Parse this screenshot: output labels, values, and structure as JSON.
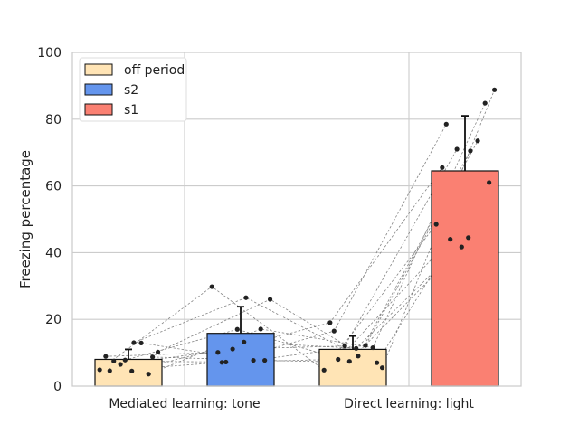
{
  "chart_data": {
    "type": "bar",
    "ylabel": "Freezing percentage",
    "xlabel": "",
    "title": "",
    "ylim": [
      0,
      100
    ],
    "yticks": [
      0,
      20,
      40,
      60,
      80,
      100
    ],
    "grid": true,
    "legend_position": "top-left",
    "groups": [
      "Mediated learning: tone",
      "Direct learning: light"
    ],
    "legend": [
      {
        "label": "off period",
        "color": "#FFE4B5"
      },
      {
        "label": "s2",
        "color": "#6495ED"
      },
      {
        "label": "s1",
        "color": "#FA8072"
      }
    ],
    "bars": [
      {
        "group": 0,
        "series": "off period",
        "color": "#FFE4B5",
        "value": 8.0,
        "error": 3.0
      },
      {
        "group": 0,
        "series": "s2",
        "color": "#6495ED",
        "value": 15.8,
        "error": 8.0
      },
      {
        "group": 1,
        "series": "off period",
        "color": "#FFE4B5",
        "value": 11.0,
        "error": 4.0
      },
      {
        "group": 1,
        "series": "s1",
        "color": "#FA8072",
        "value": 64.5,
        "error": 16.5
      }
    ],
    "points": [
      [
        7.5,
        7.2,
        8.0,
        44.0
      ],
      [
        13.0,
        26.5,
        9.0,
        70.5
      ],
      [
        8.7,
        7.7,
        7.0,
        61.0
      ],
      [
        4.9,
        29.8,
        4.8,
        48.5
      ],
      [
        6.5,
        11.1,
        12.0,
        71.0
      ],
      [
        3.6,
        17.1,
        11.5,
        84.8
      ],
      [
        8.9,
        10.1,
        19.0,
        65.5
      ],
      [
        12.9,
        7.7,
        12.2,
        73.5
      ],
      [
        7.8,
        17.0,
        7.4,
        41.7
      ],
      [
        10.2,
        26.0,
        5.5,
        88.8
      ],
      [
        4.6,
        7.1,
        16.5,
        78.5
      ],
      [
        4.5,
        13.2,
        11.3,
        44.5
      ]
    ]
  }
}
